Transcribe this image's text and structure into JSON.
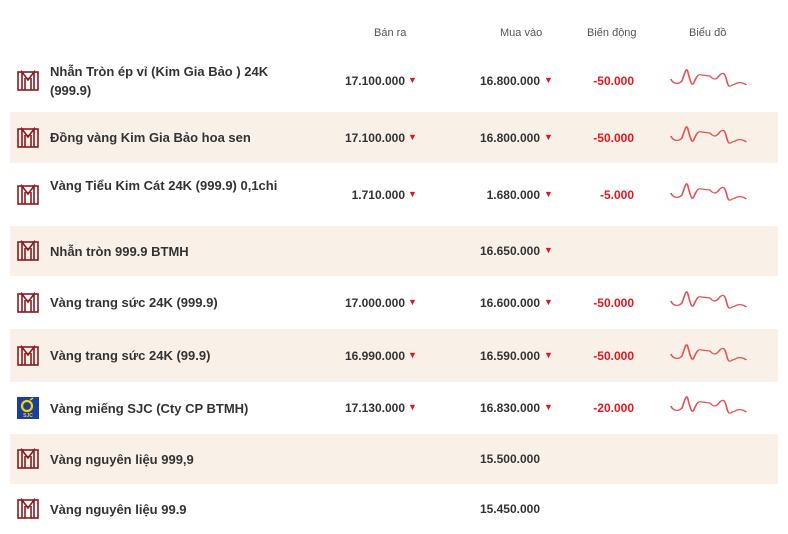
{
  "headers": {
    "sell": "Bán ra",
    "buy": "Mua vào",
    "change": "Biến động",
    "chart": "Biểu đồ"
  },
  "colors": {
    "down": "#e3161e",
    "row_alt": "#f9f1e8",
    "logo": "#8b1a1f"
  },
  "rows": [
    {
      "logo": "btmh-logo",
      "name": "Nhẫn Tròn ép vỉ (Kim Gia Bảo ) 24K (999.9)",
      "sell": "17.100.000",
      "sell_trend": "down",
      "buy": "16.800.000",
      "buy_trend": "down",
      "change": "-50.000",
      "chart": true
    },
    {
      "logo": "btmh-logo",
      "name": "Đồng vàng Kim Gia Bảo hoa sen",
      "sell": "17.100.000",
      "sell_trend": "down",
      "buy": "16.800.000",
      "buy_trend": "down",
      "change": "-50.000",
      "chart": true
    },
    {
      "logo": "btmh-logo",
      "name": "Vàng Tiểu Kim Cát 24K (999.9) 0,1chi",
      "sell": "1.710.000",
      "sell_trend": "down",
      "buy": "1.680.000",
      "buy_trend": "down",
      "change": "-5.000",
      "chart": true
    },
    {
      "logo": "btmh-logo",
      "name": "Nhẫn tròn 999.9 BTMH",
      "sell": "",
      "buy": "16.650.000",
      "buy_trend": "down",
      "change": "",
      "chart": false
    },
    {
      "logo": "btmh-logo",
      "name": "Vàng trang sức 24K (999.9)",
      "sell": "17.000.000",
      "sell_trend": "down",
      "buy": "16.600.000",
      "buy_trend": "down",
      "change": "-50.000",
      "chart": true
    },
    {
      "logo": "btmh-logo",
      "name": "Vàng trang sức 24K (99.9)",
      "sell": "16.990.000",
      "sell_trend": "down",
      "buy": "16.590.000",
      "buy_trend": "down",
      "change": "-50.000",
      "chart": true
    },
    {
      "logo": "sjc-logo",
      "name": "Vàng miếng SJC (Cty CP BTMH)",
      "sell": "17.130.000",
      "sell_trend": "down",
      "buy": "16.830.000",
      "buy_trend": "down",
      "change": "-20.000",
      "chart": true
    },
    {
      "logo": "btmh-logo",
      "name": "Vàng nguyên liệu 999,9",
      "sell": "",
      "buy": "15.500.000",
      "change": "",
      "chart": false
    },
    {
      "logo": "btmh-logo",
      "name": "Vàng nguyên liệu 99.9",
      "sell": "",
      "buy": "15.450.000",
      "change": "",
      "chart": false
    }
  ]
}
